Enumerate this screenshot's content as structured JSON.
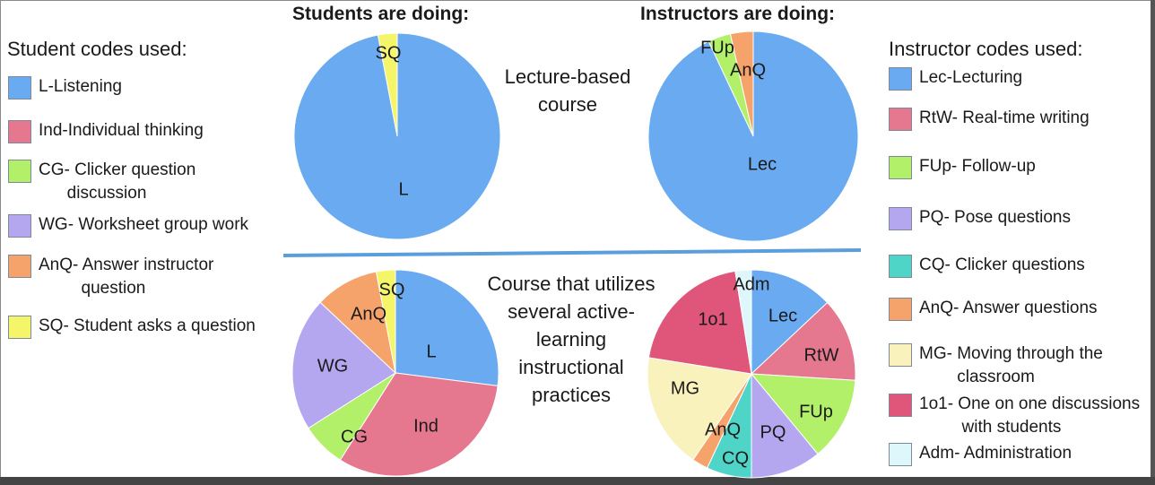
{
  "headings": {
    "students": "Students are doing:",
    "instructors": "Instructors are doing:"
  },
  "center_labels": {
    "top": "Lecture-based\ncourse",
    "bottom": "Course that utilizes\nseveral active-\nlearning\ninstructional\npractices"
  },
  "student_legend": {
    "title": "Student codes used:",
    "items": [
      {
        "code": "L",
        "label": "L-Listening",
        "color": "#6aaaf0"
      },
      {
        "code": "Ind",
        "label": "Ind-Individual thinking",
        "color": "#e5778f"
      },
      {
        "code": "CG",
        "label": "CG- Clicker question\n      discussion",
        "color": "#b2f06a"
      },
      {
        "code": "WG",
        "label": "WG- Worksheet group work",
        "color": "#b4a7f0"
      },
      {
        "code": "AnQ",
        "label": "AnQ- Answer instructor\n         question",
        "color": "#f6a36b"
      },
      {
        "code": "SQ",
        "label": "SQ- Student asks a question",
        "color": "#f5f56a"
      }
    ]
  },
  "instructor_legend": {
    "title": "Instructor codes used:",
    "items": [
      {
        "code": "Lec",
        "label": "Lec-Lecturing",
        "color": "#6aaaf0"
      },
      {
        "code": "RtW",
        "label": "RtW- Real-time writing",
        "color": "#e5778f"
      },
      {
        "code": "FUp",
        "label": "FUp- Follow-up",
        "color": "#b2f06a"
      },
      {
        "code": "PQ",
        "label": "PQ- Pose questions",
        "color": "#b4a7f0"
      },
      {
        "code": "CQ",
        "label": "CQ- Clicker questions",
        "color": "#4fd4c8"
      },
      {
        "code": "AnQ",
        "label": "AnQ- Answer questions",
        "color": "#f6a36b"
      },
      {
        "code": "MG",
        "label": "MG- Moving through the\n        classroom",
        "color": "#f9f2bd"
      },
      {
        "code": "1o1",
        "label": "1o1- One on one discussions\n         with students",
        "color": "#e0557a"
      },
      {
        "code": "Adm",
        "label": "Adm- Administration",
        "color": "#def7fb"
      }
    ]
  },
  "chart_data": [
    {
      "type": "pie",
      "title": "Students are doing:",
      "subtitle": "Lecture-based course",
      "categories": [
        "L",
        "SQ"
      ],
      "values": [
        97,
        3
      ],
      "colors": [
        "#6aaaf0",
        "#f5f56a"
      ],
      "start_angle_deg": 0
    },
    {
      "type": "pie",
      "title": "Instructors are doing:",
      "subtitle": "Lecture-based course",
      "categories": [
        "Lec",
        "FUp",
        "AnQ"
      ],
      "values": [
        93,
        3.5,
        3.5
      ],
      "colors": [
        "#6aaaf0",
        "#b2f06a",
        "#f6a36b"
      ],
      "start_angle_deg": 0
    },
    {
      "type": "pie",
      "title": "Students are doing:",
      "subtitle": "Course that utilizes several active-learning instructional practices",
      "categories": [
        "L",
        "Ind",
        "CG",
        "WG",
        "AnQ",
        "SQ"
      ],
      "values": [
        27,
        32,
        7,
        21,
        10,
        3
      ],
      "colors": [
        "#6aaaf0",
        "#e5778f",
        "#b2f06a",
        "#b4a7f0",
        "#f6a36b",
        "#f5f56a"
      ],
      "start_angle_deg": 0
    },
    {
      "type": "pie",
      "title": "Instructors are doing:",
      "subtitle": "Course that utilizes several active-learning instructional practices",
      "categories": [
        "Lec",
        "RtW",
        "FUp",
        "PQ",
        "CQ",
        "AnQ",
        "MG",
        "1o1",
        "Adm"
      ],
      "values": [
        13,
        13,
        13,
        11,
        7,
        2.5,
        18,
        20,
        2.5
      ],
      "colors": [
        "#6aaaf0",
        "#e5778f",
        "#b2f06a",
        "#b4a7f0",
        "#4fd4c8",
        "#f6a36b",
        "#f9f2bd",
        "#e0557a",
        "#def7fb"
      ],
      "start_angle_deg": 0
    }
  ]
}
